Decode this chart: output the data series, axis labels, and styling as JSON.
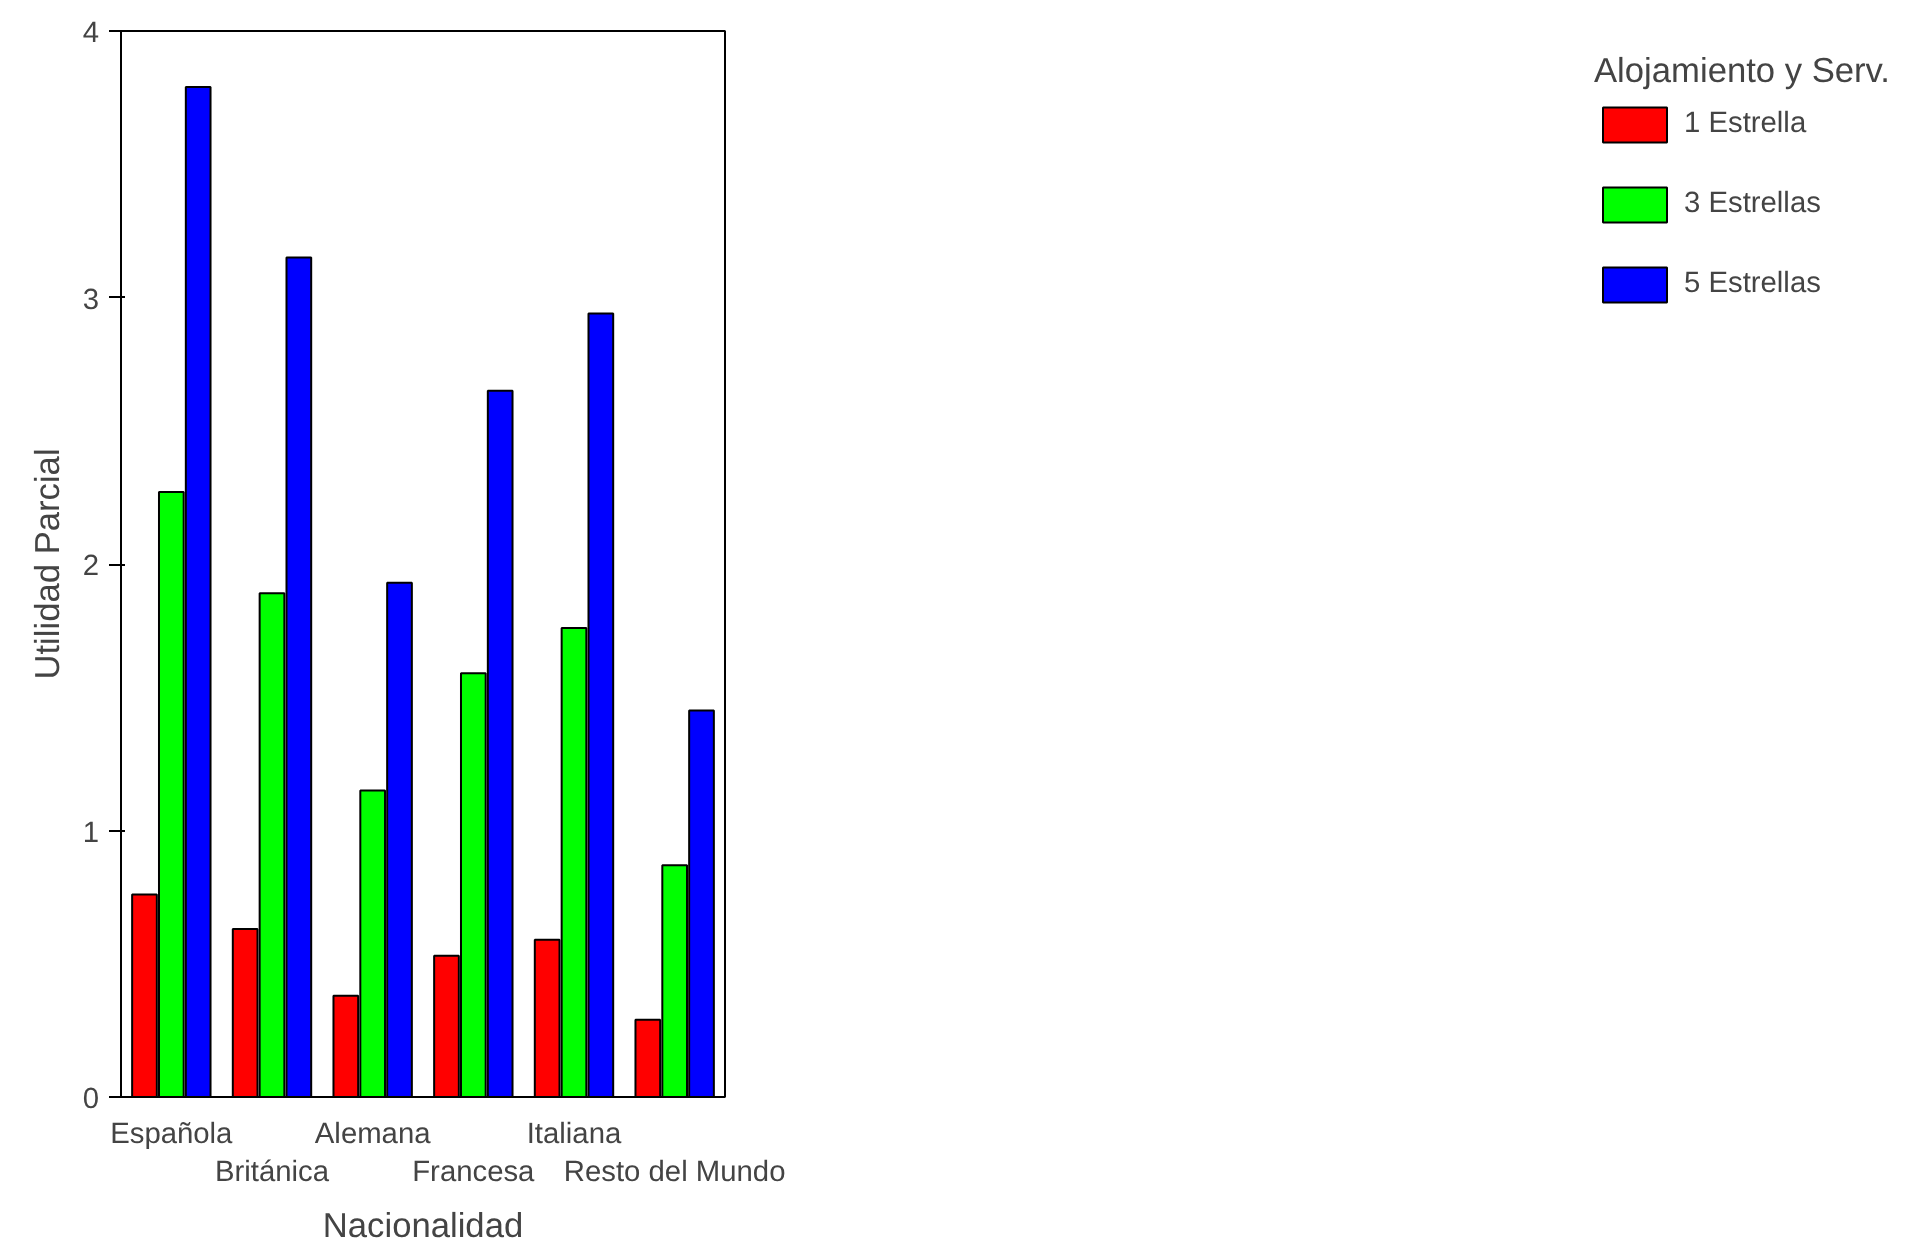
{
  "chart_data": {
    "type": "bar",
    "xlabel": "Nacionalidad",
    "ylabel": "Utilidad Parcial",
    "legend_title": "Alojamiento y Serv.",
    "categories": [
      "Española",
      "Británica",
      "Alemana",
      "Francesa",
      "Italiana",
      "Resto del Mundo"
    ],
    "series": [
      {
        "name": "1 Estrella",
        "color": "#ff0000",
        "values": [
          0.76,
          0.63,
          0.38,
          0.53,
          0.59,
          0.29
        ]
      },
      {
        "name": "3 Estrellas",
        "color": "#00ff00",
        "values": [
          2.27,
          1.89,
          1.15,
          1.59,
          1.76,
          0.87
        ]
      },
      {
        "name": "5 Estrellas",
        "color": "#0000ff",
        "values": [
          3.79,
          3.15,
          1.93,
          2.65,
          2.94,
          1.45
        ]
      }
    ],
    "ylim": [
      0,
      4
    ],
    "yticks": [
      0,
      1,
      2,
      3,
      4
    ],
    "grid": false,
    "legend": "right"
  }
}
